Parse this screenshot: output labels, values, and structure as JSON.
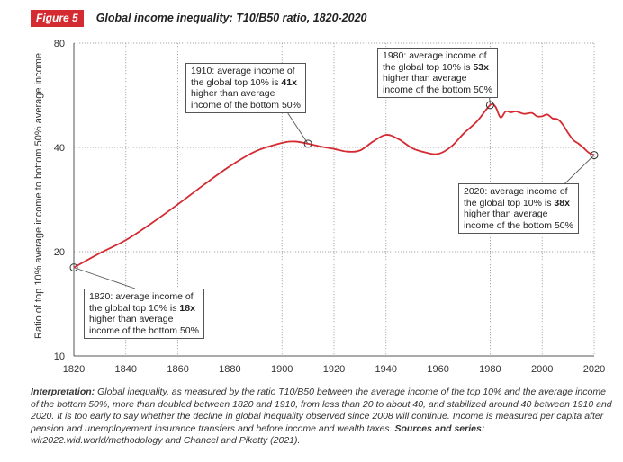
{
  "figure": {
    "badge": "Figure 5",
    "title": "Global income inequality: T10/B50 ratio, 1820-2020"
  },
  "chart_data": {
    "type": "line",
    "title": "Global income inequality: T10/B50 ratio, 1820-2020",
    "xlabel": "",
    "ylabel": "Ratio of top 10% average income to bottom 50% average income",
    "xlim": [
      1820,
      2020
    ],
    "ylim": [
      10,
      80
    ],
    "yscale": "log",
    "x_ticks": [
      "1820",
      "1840",
      "1860",
      "1880",
      "1900",
      "1920",
      "1940",
      "1960",
      "1980",
      "2000",
      "2020"
    ],
    "y_ticks": [
      "10",
      "20",
      "40",
      "80"
    ],
    "grid": true,
    "line_color": "#d42a31",
    "series": [
      {
        "name": "",
        "x": [
          1820,
          1830,
          1840,
          1850,
          1860,
          1870,
          1880,
          1890,
          1900,
          1905,
          1910,
          1915,
          1920,
          1925,
          1930,
          1935,
          1940,
          1945,
          1950,
          1955,
          1960,
          1965,
          1970,
          1975,
          1980,
          1982,
          1984,
          1986,
          1988,
          1990,
          1993,
          1996,
          1998,
          2000,
          2002,
          2004,
          2006,
          2008,
          2010,
          2012,
          2014,
          2016,
          2018,
          2020
        ],
        "y": [
          18.0,
          19.8,
          21.6,
          24.2,
          27.4,
          31.2,
          35.3,
          39.0,
          41.2,
          41.6,
          41.0,
          40.2,
          39.6,
          38.9,
          39.2,
          41.6,
          43.5,
          42.2,
          39.8,
          38.7,
          38.3,
          40.2,
          44.0,
          47.6,
          53.0,
          52.5,
          48.8,
          50.8,
          50.5,
          50.8,
          50.0,
          50.3,
          49.2,
          49.2,
          49.8,
          48.5,
          48.2,
          46.5,
          44.0,
          42.0,
          41.0,
          39.8,
          38.6,
          38.0
        ]
      }
    ],
    "annotations": [
      {
        "year": 1820,
        "value": 18,
        "pre": "1820: average income of",
        "line2_pre": "the global top 10% is ",
        "bold": "18x",
        "line3": "higher than average",
        "line4": "income of the bottom 50%"
      },
      {
        "year": 1910,
        "value": 41,
        "pre": "1910: average income of",
        "line2_pre": "the global top 10% is ",
        "bold": "41x",
        "line3": "higher than average",
        "line4": "income of the bottom 50%"
      },
      {
        "year": 1980,
        "value": 53,
        "pre": "1980: average income of",
        "line2_pre": "the global top 10% is ",
        "bold": "53x",
        "line3": "higher than average",
        "line4": "income of the bottom 50%"
      },
      {
        "year": 2020,
        "value": 38,
        "pre": "2020: average income of",
        "line2_pre": "the global top 10% is ",
        "bold": "38x",
        "line3": "higher than average",
        "line4": "income of the bottom 50%"
      }
    ]
  },
  "interpretation": {
    "label": "Interpretation:",
    "text": " Global inequality, as measured by the ratio T10/B50 between the average income of the top 10% and the average income of the bottom 50%, more than doubled between 1820 and 1910, from less than 20 to about 40, and stabilized around 40 between 1910 and 2020. It is too early to say whether the decline in global inequality observed since 2008 will continue. Income is measured per capita after pension and unemployement insurance transfers and before income and wealth taxes. ",
    "sources_label": "Sources and series:",
    "sources_text": " wir2022.wid.world/methodology and Chancel and Piketty (2021)."
  }
}
